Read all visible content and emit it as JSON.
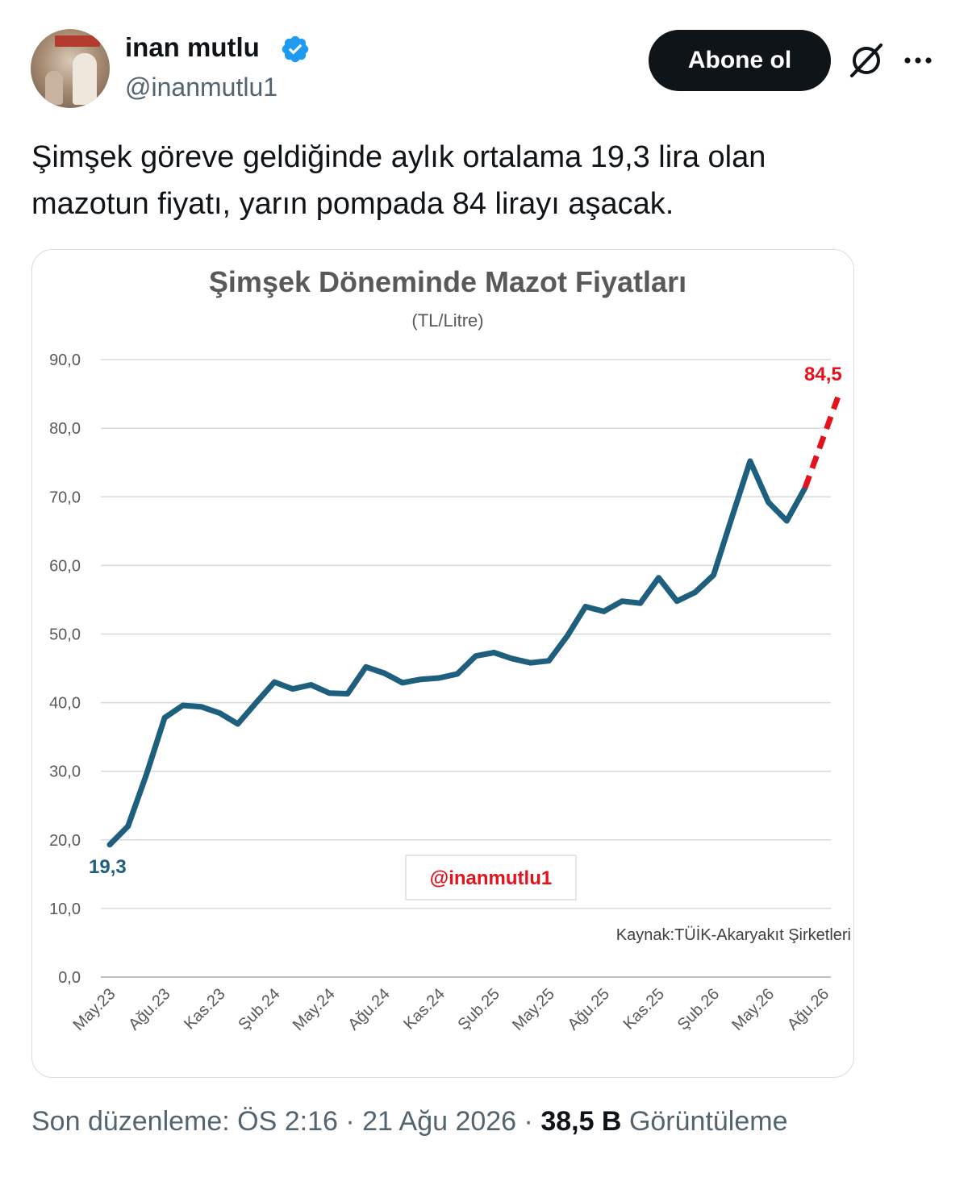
{
  "tweet": {
    "author_name": "inan mutlu",
    "author_handle": "@inanmutlu1",
    "follow_label": "Abone ol",
    "text_line1": "Şimşek göreve geldiğinde aylık ortalama 19,3 lira olan",
    "text_line2": "mazotun fiyatı, yarın pompada 84 lirayı aşacak.",
    "footer_prefix": "Son düzenleme: ÖS 2:16 · 21 Ağu 2026 · ",
    "views_count": "38,5 B",
    "views_label": " Görüntüleme"
  },
  "icons": {
    "verified": "verified-badge-icon",
    "grok": "grok-icon",
    "more": "more-icon"
  },
  "colors": {
    "line": "#1e5f7d",
    "projection": "#e3121b",
    "verified": "#1d9bf0",
    "button": "#0f1419"
  },
  "chart_data": {
    "type": "line",
    "title": "Şimşek Döneminde Mazot Fiyatları",
    "subtitle": "(TL/Litre)",
    "ylim": [
      0,
      90
    ],
    "yticks": [
      "0,0",
      "10,0",
      "20,0",
      "30,0",
      "40,0",
      "50,0",
      "60,0",
      "70,0",
      "80,0",
      "90,0"
    ],
    "xtick_labels": [
      "May.23",
      "Ağu.23",
      "Kas.23",
      "Şub.24",
      "May.24",
      "Ağu.24",
      "Kas.24",
      "Şub.25",
      "May.25",
      "Ağu.25",
      "Kas.25",
      "Şub.26",
      "May.26",
      "Ağu.26"
    ],
    "series": [
      {
        "values": [
          19.3,
          22.0,
          29.5,
          37.8,
          39.6,
          39.4,
          38.5,
          36.9,
          40.0,
          43.0,
          42.0,
          42.6,
          41.4,
          41.3,
          45.2,
          44.3,
          42.9,
          43.4,
          43.6,
          44.2,
          46.8,
          47.3,
          46.4,
          45.8,
          46.1,
          49.7,
          54.0,
          53.3,
          54.8,
          54.5,
          58.2,
          54.8,
          56.1,
          58.6,
          67.0,
          75.2,
          69.2,
          66.5,
          71.3
        ]
      },
      {
        "style": "dashed",
        "points": [
          [
            38,
            71.3
          ],
          [
            39,
            84.5
          ]
        ]
      }
    ],
    "annotations": [
      {
        "label": "19,3",
        "at": "start",
        "color": "#1e5f7d"
      },
      {
        "label": "84,5",
        "at": "end",
        "color": "#e3121b"
      }
    ],
    "watermark": "@inanmutlu1",
    "source": "Kaynak:TÜİK-Akaryakıt Şirketleri",
    "grid": true
  }
}
